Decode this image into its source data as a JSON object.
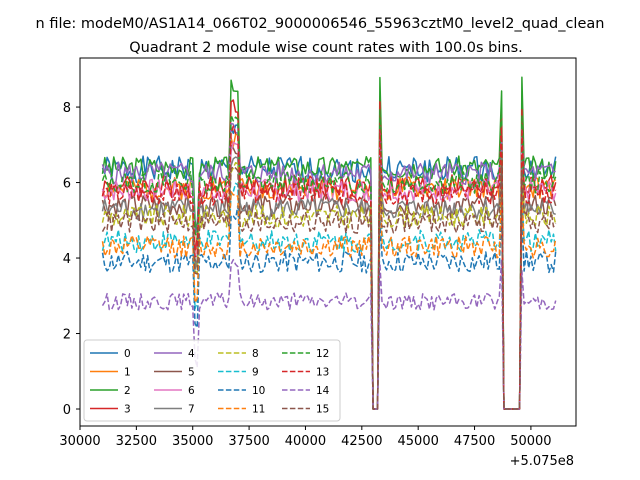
{
  "suptitle": "n file: modeM0/AS1A14_066T02_9000006546_55963cztM0_level2_quad_clean",
  "chart_data": {
    "type": "line",
    "title": "Quadrant 2 module wise count rates with 100.0s bins.",
    "xlabel": "",
    "ylabel": "",
    "x_offset_label": "+5.075e8",
    "xlim": [
      30000,
      52000
    ],
    "ylim": [
      -0.45,
      9.3
    ],
    "xticks": [
      30000,
      32500,
      35000,
      37500,
      40000,
      42500,
      45000,
      47500,
      50000
    ],
    "yticks": [
      0,
      2,
      4,
      6,
      8
    ],
    "grid": false,
    "legend": {
      "placement": "lower-left",
      "columns": 4
    },
    "x_start": 31000,
    "x_end": 51100,
    "x_step": 100,
    "gaps": [
      [
        42950,
        43200
      ],
      [
        48800,
        49500
      ]
    ],
    "spikes": [
      [
        36700,
        37000
      ],
      [
        43250,
        43350
      ],
      [
        48700,
        48800
      ],
      [
        49550,
        49650
      ]
    ],
    "series": [
      {
        "name": "0",
        "color": "#1f77b4",
        "dash": "solid",
        "level": 6.35,
        "noise": 0.35,
        "spike": 7.6
      },
      {
        "name": "1",
        "color": "#ff7f0e",
        "dash": "solid",
        "level": 5.85,
        "noise": 0.3,
        "spike": 7.3
      },
      {
        "name": "2",
        "color": "#2ca02c",
        "dash": "solid",
        "level": 6.4,
        "noise": 0.3,
        "spike": 8.8
      },
      {
        "name": "3",
        "color": "#d62728",
        "dash": "solid",
        "level": 5.9,
        "noise": 0.3,
        "spike": 8.2
      },
      {
        "name": "4",
        "color": "#9467bd",
        "dash": "solid",
        "level": 6.25,
        "noise": 0.3,
        "spike": 7.6
      },
      {
        "name": "5",
        "color": "#8c564b",
        "dash": "solid",
        "level": 5.4,
        "noise": 0.3,
        "spike": 7.0
      },
      {
        "name": "6",
        "color": "#e377c2",
        "dash": "solid",
        "level": 5.8,
        "noise": 0.3,
        "spike": 7.2
      },
      {
        "name": "7",
        "color": "#7f7f7f",
        "dash": "solid",
        "level": 5.3,
        "noise": 0.3,
        "spike": 6.8
      },
      {
        "name": "8",
        "color": "#bcbd22",
        "dash": "dashed",
        "level": 5.1,
        "noise": 0.3,
        "spike": 6.6
      },
      {
        "name": "9",
        "color": "#17becf",
        "dash": "dashed",
        "level": 4.45,
        "noise": 0.3,
        "spike": 6.0
      },
      {
        "name": "10",
        "color": "#1f77b4",
        "dash": "dashed",
        "level": 3.9,
        "noise": 0.3,
        "spike": 5.4
      },
      {
        "name": "11",
        "color": "#ff7f0e",
        "dash": "dashed",
        "level": 4.3,
        "noise": 0.3,
        "spike": 6.0
      },
      {
        "name": "12",
        "color": "#2ca02c",
        "dash": "dashed",
        "level": 6.0,
        "noise": 0.3,
        "spike": 8.0
      },
      {
        "name": "13",
        "color": "#d62728",
        "dash": "dashed",
        "level": 5.7,
        "noise": 0.3,
        "spike": 7.5
      },
      {
        "name": "14",
        "color": "#9467bd",
        "dash": "dashed",
        "level": 2.85,
        "noise": 0.22,
        "spike": 4.0
      },
      {
        "name": "15",
        "color": "#8c564b",
        "dash": "dashed",
        "level": 4.95,
        "noise": 0.3,
        "spike": 6.5
      }
    ]
  }
}
